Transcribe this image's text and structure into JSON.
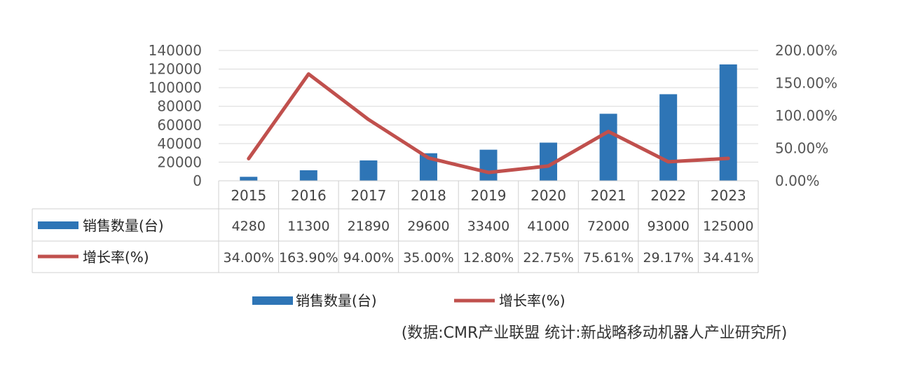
{
  "chart_data": {
    "type": "bar+line",
    "categories": [
      "2015",
      "2016",
      "2017",
      "2018",
      "2019",
      "2020",
      "2021",
      "2022",
      "2023"
    ],
    "series": [
      {
        "name": "销售数量(台)",
        "type": "bar",
        "axis": "left",
        "color": "#2e75b6",
        "values": [
          4280,
          11300,
          21890,
          29600,
          33400,
          41000,
          72000,
          93000,
          125000
        ],
        "labels": [
          "4280",
          "11300",
          "21890",
          "29600",
          "33400",
          "41000",
          "72000",
          "93000",
          "125000"
        ]
      },
      {
        "name": "增长率(%)",
        "type": "line",
        "axis": "right",
        "color": "#c0504d",
        "values": [
          34.0,
          163.9,
          94.0,
          35.0,
          12.8,
          22.75,
          75.61,
          29.17,
          34.41
        ],
        "labels": [
          "34.00%",
          "163.90%",
          "94.00%",
          "35.00%",
          "12.80%",
          "22.75%",
          "75.61%",
          "29.17%",
          "34.41%"
        ]
      }
    ],
    "y_left": {
      "range": [
        0,
        140000
      ],
      "ticks": [
        0,
        20000,
        40000,
        60000,
        80000,
        100000,
        120000,
        140000
      ],
      "tick_labels": [
        "0",
        "20000",
        "40000",
        "60000",
        "80000",
        "100000",
        "120000",
        "140000"
      ]
    },
    "y_right": {
      "range": [
        0,
        200
      ],
      "ticks": [
        0,
        50,
        100,
        150,
        200
      ],
      "tick_labels": [
        "0.00%",
        "50.00%",
        "100.00%",
        "150.00%",
        "200.00%"
      ]
    },
    "grid": true,
    "data_table": true,
    "legend": "bottom-center",
    "source": "(数据:CMR产业联盟 统计:新战略移动机器人产业研究所)"
  }
}
